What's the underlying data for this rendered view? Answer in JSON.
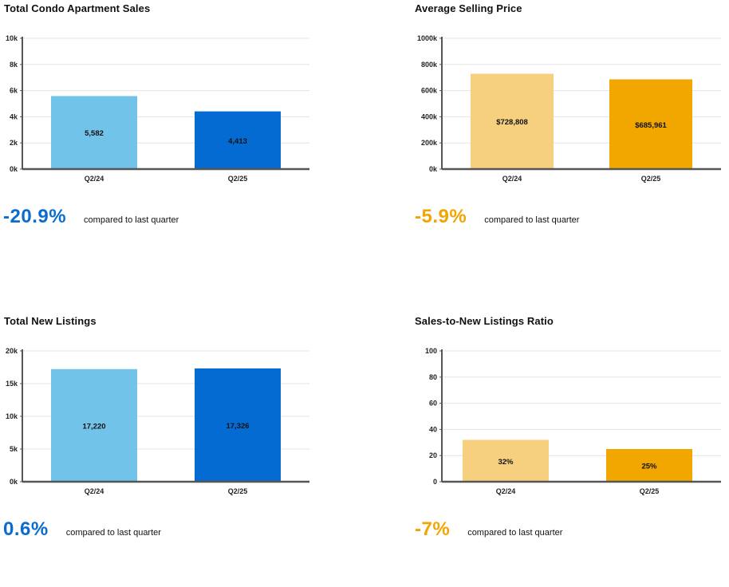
{
  "panels": [
    {
      "title": "Total Condo Apartment Sales",
      "change": {
        "value": "-20.9%",
        "text": "compared to last quarter",
        "color": "#0b6ccf"
      },
      "chart_data": {
        "type": "bar",
        "title": "Total Condo Apartment Sales",
        "categories": [
          "Q2/24",
          "Q2/25"
        ],
        "values": [
          5582,
          4413
        ],
        "data_labels": [
          "5,582",
          "4,413"
        ],
        "colors": [
          "#72c3ea",
          "#046bd3"
        ],
        "ylim": [
          0,
          10000
        ],
        "yticks": [
          0,
          2000,
          4000,
          6000,
          8000,
          10000
        ],
        "ytick_labels": [
          "0k",
          "2k",
          "4k",
          "6k",
          "8k",
          "10k"
        ],
        "grid": true
      }
    },
    {
      "title": "Average Selling Price",
      "change": {
        "value": "-5.9%",
        "text": "compared to last quarter",
        "color": "#f0a500"
      },
      "chart_data": {
        "type": "bar",
        "title": "Average Selling Price",
        "categories": [
          "Q2/24",
          "Q2/25"
        ],
        "values": [
          728808,
          685961
        ],
        "data_labels": [
          "$728,808",
          "$685,961"
        ],
        "colors": [
          "#f6d07e",
          "#f1a600"
        ],
        "ylim": [
          0,
          1000000
        ],
        "yticks": [
          0,
          200000,
          400000,
          600000,
          800000,
          1000000
        ],
        "ytick_labels": [
          "0k",
          "200k",
          "400k",
          "600k",
          "800k",
          "1000k"
        ],
        "grid": true
      }
    },
    {
      "title": "Total New Listings",
      "change": {
        "value": "0.6%",
        "text": "compared to last quarter",
        "color": "#0b6ccf"
      },
      "chart_data": {
        "type": "bar",
        "title": "Total New Listings",
        "categories": [
          "Q2/24",
          "Q2/25"
        ],
        "values": [
          17220,
          17326
        ],
        "data_labels": [
          "17,220",
          "17,326"
        ],
        "colors": [
          "#72c3ea",
          "#046bd3"
        ],
        "ylim": [
          0,
          20000
        ],
        "yticks": [
          0,
          5000,
          10000,
          15000,
          20000
        ],
        "ytick_labels": [
          "0k",
          "5k",
          "10k",
          "15k",
          "20k"
        ],
        "grid": true
      }
    },
    {
      "title": "Sales-to-New Listings Ratio",
      "change": {
        "value": "-7%",
        "text": "compared to last quarter",
        "color": "#f0a500"
      },
      "chart_data": {
        "type": "bar",
        "title": "Sales-to-New Listings Ratio",
        "categories": [
          "Q2/24",
          "Q2/25"
        ],
        "values": [
          32,
          25
        ],
        "data_labels": [
          "32%",
          "25%"
        ],
        "colors": [
          "#f6d07e",
          "#f1a600"
        ],
        "ylim": [
          0,
          100
        ],
        "yticks": [
          0,
          20,
          40,
          60,
          80,
          100
        ],
        "ytick_labels": [
          "0",
          "20",
          "40",
          "60",
          "80",
          "100"
        ],
        "grid": true
      }
    }
  ]
}
